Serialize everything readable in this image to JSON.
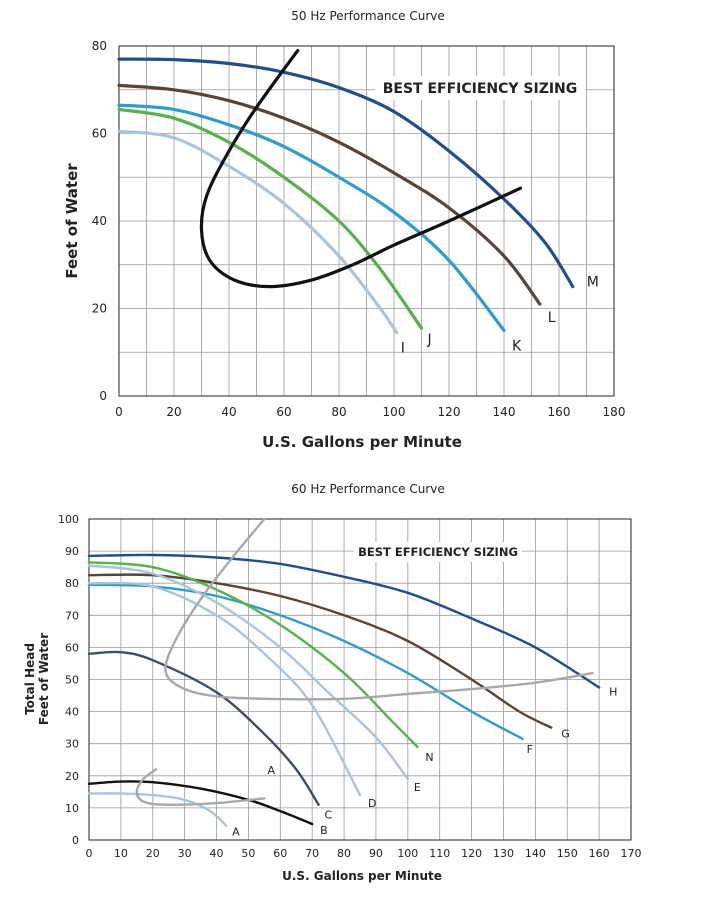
{
  "chart_data": [
    {
      "type": "line",
      "title": "50 Hz Performance Curve",
      "xlabel": "U.S. Gallons per Minute",
      "ylabel": "Feet of Water",
      "annotation": "BEST EFFICIENCY SIZING",
      "xlim": [
        0,
        180
      ],
      "ylim": [
        0,
        80
      ],
      "xticks": [
        "0",
        "20",
        "40",
        "60",
        "80",
        "100",
        "120",
        "140",
        "160",
        "180"
      ],
      "yticks": [
        "0",
        "20",
        "40",
        "60",
        "80"
      ],
      "grid": true,
      "series": [
        {
          "name": "M",
          "color": "#1f4e8c",
          "points": [
            [
              0,
              77
            ],
            [
              20,
              76.9
            ],
            [
              40,
              76
            ],
            [
              60,
              74
            ],
            [
              80,
              70.5
            ],
            [
              100,
              65
            ],
            [
              120,
              56
            ],
            [
              140,
              45
            ],
            [
              155,
              35
            ],
            [
              165,
              25
            ]
          ]
        },
        {
          "name": "L",
          "color": "#5a4535",
          "points": [
            [
              0,
              71
            ],
            [
              20,
              70
            ],
            [
              40,
              67.5
            ],
            [
              60,
              63.5
            ],
            [
              80,
              58
            ],
            [
              100,
              51
            ],
            [
              120,
              43
            ],
            [
              140,
              32
            ],
            [
              153,
              21
            ]
          ]
        },
        {
          "name": "K",
          "color": "#2f9ccf",
          "points": [
            [
              0,
              66.5
            ],
            [
              20,
              65.5
            ],
            [
              40,
              62
            ],
            [
              60,
              57
            ],
            [
              80,
              50
            ],
            [
              100,
              42
            ],
            [
              120,
              31
            ],
            [
              140,
              15
            ]
          ]
        },
        {
          "name": "J",
          "color": "#56b24a",
          "points": [
            [
              0,
              65.5
            ],
            [
              20,
              63.5
            ],
            [
              40,
              58
            ],
            [
              60,
              50
            ],
            [
              80,
              40
            ],
            [
              95,
              29
            ],
            [
              110,
              15.5
            ]
          ]
        },
        {
          "name": "I",
          "color": "#a9c5dc",
          "points": [
            [
              0,
              60.5
            ],
            [
              20,
              59
            ],
            [
              40,
              52.5
            ],
            [
              60,
              44
            ],
            [
              80,
              32
            ],
            [
              95,
              20
            ],
            [
              101,
              14.5
            ]
          ]
        },
        {
          "name": "",
          "color": "#111111",
          "points": [
            [
              65,
              79
            ],
            [
              50,
              66
            ],
            [
              40,
              56
            ],
            [
              32,
              46
            ],
            [
              30,
              38
            ],
            [
              33,
              31
            ],
            [
              42,
              26.5
            ],
            [
              55,
              25
            ],
            [
              70,
              26.5
            ],
            [
              85,
              30
            ],
            [
              100,
              34.5
            ],
            [
              120,
              40
            ],
            [
              146,
              47.5
            ]
          ]
        }
      ]
    },
    {
      "type": "line",
      "title": "60 Hz Performance Curve",
      "xlabel": "U.S. Gallons per Minute",
      "ylabel": "Total Head\nFeet of Water",
      "ylabel_lines": [
        "Total Head",
        "Feet of Water"
      ],
      "annotation": "BEST EFFICIENCY SIZING",
      "xlim": [
        0,
        170
      ],
      "ylim": [
        0,
        100
      ],
      "xticks": [
        "0",
        "10",
        "20",
        "30",
        "40",
        "50",
        "60",
        "70",
        "80",
        "90",
        "100",
        "110",
        "120",
        "130",
        "140",
        "150",
        "160",
        "170"
      ],
      "yticks": [
        "0",
        "10",
        "20",
        "30",
        "40",
        "50",
        "60",
        "70",
        "80",
        "90",
        "100"
      ],
      "grid": true,
      "series": [
        {
          "name": "H",
          "color": "#1f4e8c",
          "points": [
            [
              0,
              88.5
            ],
            [
              20,
              88.8
            ],
            [
              40,
              88
            ],
            [
              60,
              86
            ],
            [
              80,
              82
            ],
            [
              100,
              77
            ],
            [
              120,
              69
            ],
            [
              140,
              60
            ],
            [
              160,
              47.5
            ]
          ]
        },
        {
          "name": "G",
          "color": "#5a4535",
          "points": [
            [
              0,
              82.5
            ],
            [
              20,
              82.5
            ],
            [
              40,
              80
            ],
            [
              60,
              76
            ],
            [
              80,
              70
            ],
            [
              100,
              62
            ],
            [
              120,
              50
            ],
            [
              135,
              40
            ],
            [
              145,
              35
            ]
          ]
        },
        {
          "name": "F",
          "color": "#2f9ccf",
          "points": [
            [
              0,
              79.5
            ],
            [
              20,
              79
            ],
            [
              40,
              76
            ],
            [
              60,
              70
            ],
            [
              80,
              62
            ],
            [
              100,
              52
            ],
            [
              120,
              40
            ],
            [
              136,
              31.5
            ]
          ]
        },
        {
          "name": "N",
          "color": "#56b24a",
          "points": [
            [
              0,
              86.5
            ],
            [
              20,
              85
            ],
            [
              40,
              78
            ],
            [
              60,
              67
            ],
            [
              80,
              52
            ],
            [
              95,
              37
            ],
            [
              103,
              29
            ]
          ]
        },
        {
          "name": "E",
          "color": "#a9c5dc",
          "points": [
            [
              0,
              85.5
            ],
            [
              20,
              83
            ],
            [
              40,
              74
            ],
            [
              60,
              60
            ],
            [
              75,
              46
            ],
            [
              90,
              32
            ],
            [
              100,
              19
            ]
          ]
        },
        {
          "name": "D",
          "color": "#a9c5dc",
          "points": [
            [
              0,
              80
            ],
            [
              20,
              79
            ],
            [
              40,
              70
            ],
            [
              55,
              58
            ],
            [
              70,
              42
            ],
            [
              85,
              14
            ]
          ]
        },
        {
          "name": "C",
          "color": "#3a5068",
          "points": [
            [
              0,
              58
            ],
            [
              10,
              58.5
            ],
            [
              20,
              56
            ],
            [
              40,
              46
            ],
            [
              55,
              33
            ],
            [
              65,
              22
            ],
            [
              72,
              11
            ]
          ]
        },
        {
          "name": "B",
          "color": "#111111",
          "points": [
            [
              0,
              17.5
            ],
            [
              10,
              18.2
            ],
            [
              20,
              18
            ],
            [
              35,
              16
            ],
            [
              50,
              12.5
            ],
            [
              60,
              9
            ],
            [
              70,
              5
            ]
          ]
        },
        {
          "name": "A",
          "color": "#a9c5dc",
          "points": [
            [
              0,
              14.5
            ],
            [
              10,
              14.5
            ],
            [
              20,
              14
            ],
            [
              30,
              12.5
            ],
            [
              38,
              9
            ],
            [
              43,
              4.5
            ]
          ]
        },
        {
          "name": "",
          "color": "#a8a8a8",
          "points": [
            [
              55,
              100
            ],
            [
              45,
              88
            ],
            [
              35,
              75
            ],
            [
              27,
              62
            ],
            [
              24,
              53
            ],
            [
              28,
              48
            ],
            [
              38,
              45
            ],
            [
              55,
              44
            ],
            [
              80,
              44
            ],
            [
              100,
              45.5
            ],
            [
              120,
              47
            ],
            [
              140,
              49
            ],
            [
              158,
              52
            ]
          ]
        },
        {
          "name": "",
          "color": "#a8a8a8",
          "points": [
            [
              21,
              22
            ],
            [
              17,
              19
            ],
            [
              15,
              15
            ],
            [
              17,
              12
            ],
            [
              24,
              11
            ],
            [
              40,
              11.5
            ],
            [
              55,
              13
            ]
          ]
        }
      ],
      "extra_labels": [
        {
          "text": "A",
          "x": 56,
          "y": 20.5
        }
      ]
    }
  ]
}
